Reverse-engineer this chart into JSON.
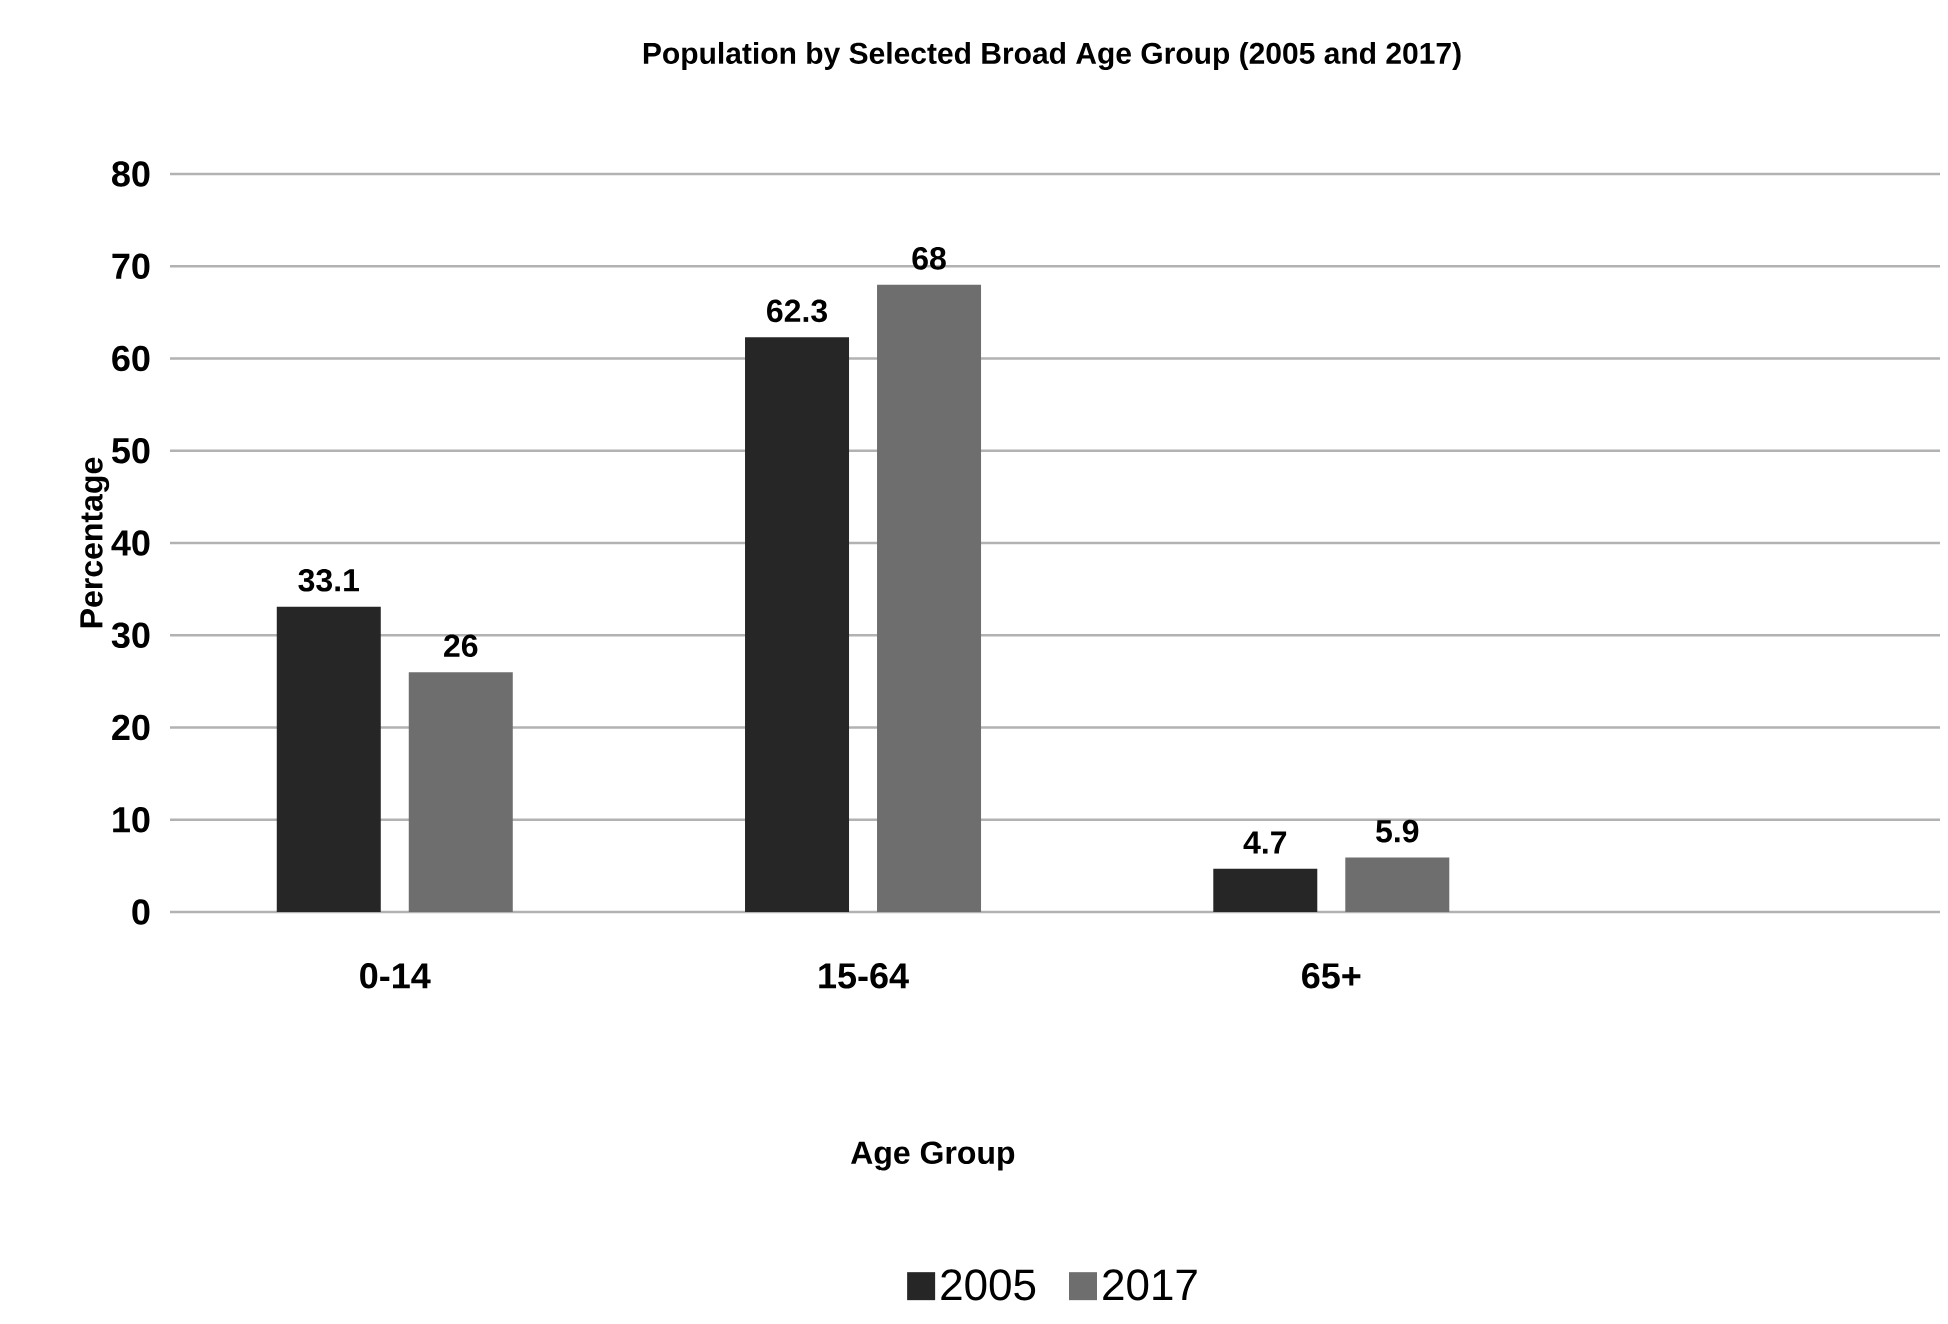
{
  "chart_data": {
    "type": "bar",
    "title": "Population by Selected Broad Age Group (2005  and 2017)",
    "xlabel": "Age Group",
    "ylabel": "Percentage",
    "categories": [
      "0-14",
      "15-64",
      "65+"
    ],
    "series": [
      {
        "name": "2005",
        "color": "#262626",
        "values": [
          33.1,
          62.3,
          4.7
        ]
      },
      {
        "name": "2017",
        "color": "#6e6e6e",
        "values": [
          26,
          68,
          5.9
        ]
      }
    ],
    "ylim": [
      0,
      80
    ],
    "yticks": [
      0,
      10,
      20,
      30,
      40,
      50,
      60,
      70,
      80
    ],
    "grid": "y",
    "legend": "bottom",
    "data_labels": true
  }
}
